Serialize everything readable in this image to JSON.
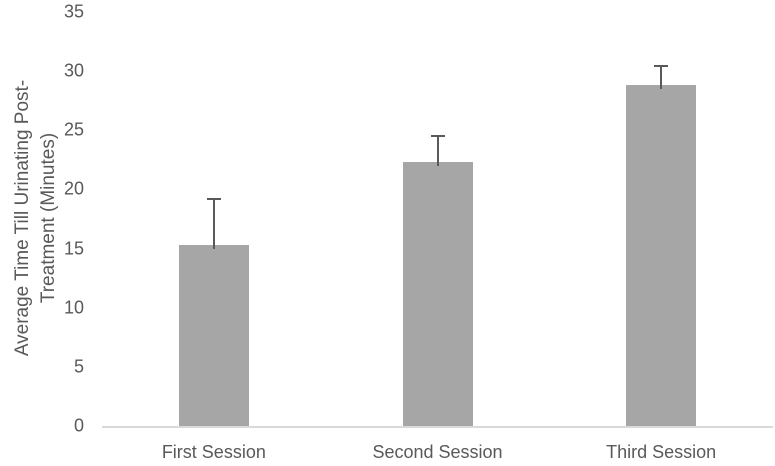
{
  "chart_data": {
    "type": "bar",
    "title": "",
    "xlabel": "",
    "ylabel": "Average Time Till Urinating Post-Treatment (Minutes)",
    "ylabel_lines": [
      "Average Time Till Urinating Post-",
      "Treatment (Minutes)"
    ],
    "categories": [
      "First Session",
      "Second Session",
      "Third Session"
    ],
    "values": [
      15.4,
      22.4,
      28.9
    ],
    "error_plus": [
      4.0,
      2.3,
      1.7
    ],
    "ylim": [
      0,
      35
    ],
    "yticks": [
      0,
      5,
      10,
      15,
      20,
      25,
      30,
      35
    ],
    "grid": false,
    "legend": false,
    "bar_color": "#a6a6a6",
    "error_color": "#595959",
    "axis_line_color": "#d9d9d9",
    "text_color": "#595959",
    "background_color": "#ffffff"
  }
}
